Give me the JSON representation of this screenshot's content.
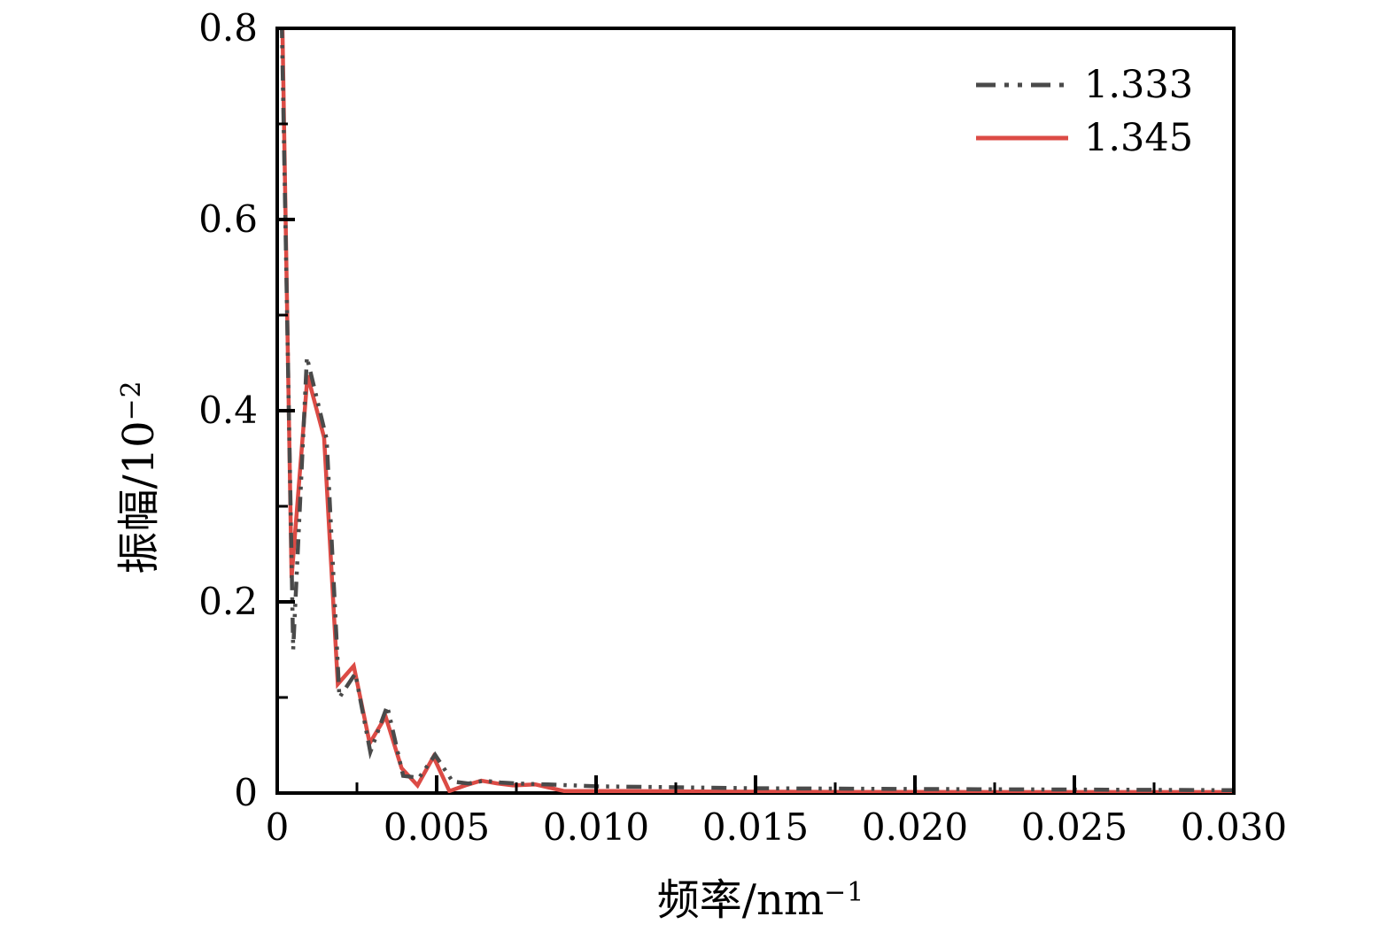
{
  "figure": {
    "background": "#ffffff",
    "axis_color": "#000000",
    "text_color": "#000000"
  },
  "chart_data": {
    "type": "line",
    "title": "",
    "xlabel": "频率/nm−1",
    "xlabel_parts": {
      "base": "频率/nm",
      "sup": "−1"
    },
    "ylabel": "振幅/10−2",
    "ylabel_parts": {
      "base": "振幅/10",
      "sup": "−2"
    },
    "xlim": [
      0,
      0.03
    ],
    "ylim": [
      0,
      0.8
    ],
    "grid": false,
    "legend": {
      "position": "top-right",
      "frame": false
    },
    "x_major_ticks": [
      0,
      0.005,
      0.01,
      0.015,
      0.02,
      0.025,
      0.03
    ],
    "x_major_labels": [
      "0",
      "0.005",
      "0.010",
      "0.015",
      "0.020",
      "0.025",
      "0.030"
    ],
    "x_minor_ticks": [
      0.0025,
      0.0075,
      0.0125,
      0.0175,
      0.0225,
      0.0275
    ],
    "y_major_ticks": [
      0,
      0.2,
      0.4,
      0.6,
      0.8
    ],
    "y_major_labels": [
      "0",
      "0.2",
      "0.4",
      "0.6",
      "0.8"
    ],
    "y_minor_ticks": [
      0.1,
      0.3,
      0.5,
      0.7
    ],
    "series": [
      {
        "name": "1.333",
        "color": "#4a4a4a",
        "line_style": "dash-dot-dot",
        "line_width": 4.5,
        "points": [
          [
            0.00012,
            0.85
          ],
          [
            0.0005,
            0.15
          ],
          [
            0.00093,
            0.456
          ],
          [
            0.00155,
            0.37
          ],
          [
            0.00195,
            0.1
          ],
          [
            0.00245,
            0.125
          ],
          [
            0.00292,
            0.043
          ],
          [
            0.00345,
            0.091
          ],
          [
            0.00395,
            0.018
          ],
          [
            0.00445,
            0.016
          ],
          [
            0.00495,
            0.04
          ],
          [
            0.0055,
            0.012
          ],
          [
            0.006,
            0.01
          ],
          [
            0.0065,
            0.013
          ],
          [
            0.007,
            0.011
          ],
          [
            0.0075,
            0.01
          ],
          [
            0.0085,
            0.009
          ],
          [
            0.01,
            0.007
          ],
          [
            0.0125,
            0.006
          ],
          [
            0.015,
            0.005
          ],
          [
            0.018,
            0.0045
          ],
          [
            0.022,
            0.004
          ],
          [
            0.026,
            0.0035
          ],
          [
            0.03,
            0.003
          ]
        ]
      },
      {
        "name": "1.345",
        "color": "#dc4b45",
        "line_style": "solid",
        "line_width": 4.5,
        "points": [
          [
            0.00014,
            0.85
          ],
          [
            0.00045,
            0.225
          ],
          [
            0.00095,
            0.437
          ],
          [
            0.00147,
            0.372
          ],
          [
            0.0019,
            0.114
          ],
          [
            0.0024,
            0.133
          ],
          [
            0.0029,
            0.052
          ],
          [
            0.0034,
            0.08
          ],
          [
            0.0039,
            0.026
          ],
          [
            0.0044,
            0.008
          ],
          [
            0.0049,
            0.038
          ],
          [
            0.0054,
            0.002
          ],
          [
            0.0059,
            0.008
          ],
          [
            0.0064,
            0.013
          ],
          [
            0.0069,
            0.01
          ],
          [
            0.0074,
            0.008
          ],
          [
            0.0081,
            0.009
          ],
          [
            0.009,
            0.002
          ],
          [
            0.011,
            0.002
          ],
          [
            0.014,
            0.0015
          ],
          [
            0.018,
            0.0012
          ],
          [
            0.024,
            0.001
          ],
          [
            0.03,
            0.001
          ]
        ]
      }
    ]
  }
}
